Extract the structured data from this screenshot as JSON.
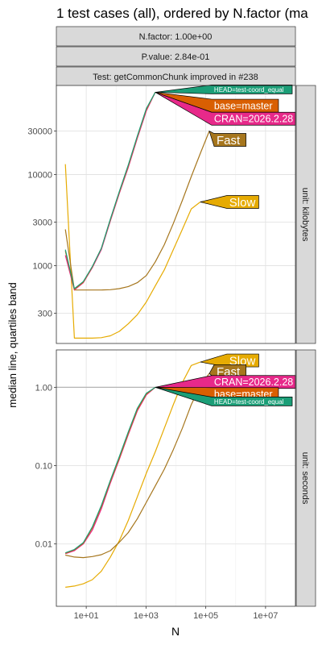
{
  "chart_data": {
    "type": "line",
    "title": "1 test cases (all), ordered by N.factor (ma",
    "xlabel": "N",
    "ylabel": "median line, quartiles band",
    "x_scale": "log10",
    "y_scale": "log10",
    "xlim": [
      1,
      100000000
    ],
    "x_ticks": [
      {
        "value": 10,
        "label": "1e+01"
      },
      {
        "value": 1000,
        "label": "1e+03"
      },
      {
        "value": 100000,
        "label": "1e+05"
      },
      {
        "value": 10000000,
        "label": "1e+07"
      }
    ],
    "strips": [
      {
        "key": "N.factor",
        "label": "N.factor: 1.00e+00"
      },
      {
        "key": "P.value",
        "label": "P.value: 2.84e-01"
      },
      {
        "key": "test",
        "label": "Test: getCommonChunk improved in #238"
      }
    ],
    "legend": "direct labels at line ends",
    "grid": true,
    "panels": [
      {
        "id": "kilobytes",
        "strip_label": "unit: kilobytes",
        "ylim": [
          140,
          95000
        ],
        "y_ticks": [
          {
            "value": 300,
            "label": "300"
          },
          {
            "value": 1000,
            "label": "1000"
          },
          {
            "value": 3000,
            "label": "3000"
          },
          {
            "value": 10000,
            "label": "10000"
          },
          {
            "value": 30000,
            "label": "30000"
          }
        ],
        "reference_line": null,
        "series": [
          {
            "name": "Slow",
            "color": "#E6AB02",
            "x": [
              2,
              4,
              8,
              16,
              32,
              64,
              128,
              256,
              512,
              1024,
              2048,
              4096,
              8192,
              16384,
              32768,
              65536
            ],
            "y": [
              13000,
              160,
              160,
              160,
              162,
              170,
              190,
              230,
              290,
              400,
              600,
              900,
              1500,
              2500,
              4200,
              5000
            ]
          },
          {
            "name": "Fast",
            "color": "#A6761D",
            "x": [
              2,
              4,
              8,
              16,
              32,
              64,
              128,
              256,
              512,
              1024,
              2048,
              4096,
              8192,
              16384,
              32768,
              65536,
              131072
            ],
            "y": [
              2500,
              540,
              540,
              540,
              540,
              545,
              560,
              590,
              650,
              780,
              1100,
              1700,
              2900,
              5200,
              9500,
              17000,
              30000
            ]
          },
          {
            "name": "CRAN=2026.2.28",
            "color": "#E7298A",
            "x": [
              2,
              4,
              8,
              16,
              32,
              64,
              128,
              256,
              512,
              1024,
              2048
            ],
            "y": [
              1300,
              540,
              650,
              950,
              1500,
              3100,
              6200,
              12000,
              25000,
              50000,
              80000
            ]
          },
          {
            "name": "base=master",
            "color": "#D95F02",
            "x": [
              2,
              4,
              8,
              16,
              32,
              64,
              128,
              256,
              512,
              1024,
              2048
            ],
            "y": [
              1450,
              550,
              660,
              970,
              1550,
              3200,
              6400,
              12500,
              26000,
              52000,
              80000
            ]
          },
          {
            "name": "HEAD=test-coord_equal",
            "color": "#1B9E77",
            "x": [
              2,
              4,
              8,
              16,
              32,
              64,
              128,
              256,
              512,
              1024,
              2048
            ],
            "y": [
              1500,
              560,
              670,
              980,
              1550,
              3250,
              6500,
              12800,
              26500,
              53000,
              80000
            ]
          }
        ],
        "labels": [
          {
            "series": "Slow",
            "text": "Slow",
            "at_x": 65536,
            "at_y": 5000,
            "label_y": 5000
          },
          {
            "series": "Fast",
            "text": "Fast",
            "at_x": 131072,
            "at_y": 30000,
            "label_y": 24000
          },
          {
            "series": "CRAN=2026.2.28",
            "text": "CRAN=2026.2.28",
            "at_x": 2048,
            "at_y": 80000,
            "label_y": 41000
          },
          {
            "series": "base=master",
            "text": "base=master",
            "at_x": 2048,
            "at_y": 80000,
            "label_y": 57000
          },
          {
            "series": "HEAD=test-coord_equal",
            "text": "HEAD=test-coord_equal",
            "at_x": 2048,
            "at_y": 80000,
            "label_y": 86000
          }
        ]
      },
      {
        "id": "seconds",
        "strip_label": "unit: seconds",
        "ylim": [
          0.0016,
          3.0
        ],
        "y_ticks": [
          {
            "value": 0.01,
            "label": "0.01"
          },
          {
            "value": 0.1,
            "label": "0.10"
          },
          {
            "value": 1,
            "label": "1.00"
          }
        ],
        "reference_line": 1,
        "series": [
          {
            "name": "Slow",
            "color": "#E6AB02",
            "x": [
              2,
              4,
              8,
              16,
              32,
              64,
              128,
              256,
              512,
              1024,
              2048,
              4096,
              8192,
              16384,
              32768,
              65536
            ],
            "y": [
              0.0028,
              0.0029,
              0.0031,
              0.0035,
              0.0045,
              0.0068,
              0.011,
              0.02,
              0.04,
              0.08,
              0.15,
              0.3,
              0.6,
              1.15,
              1.9,
              2.1
            ]
          },
          {
            "name": "Fast",
            "color": "#A6761D",
            "x": [
              2,
              4,
              8,
              16,
              32,
              64,
              128,
              256,
              512,
              1024,
              2048,
              4096,
              8192,
              16384,
              32768,
              65536,
              131072
            ],
            "y": [
              0.0072,
              0.0068,
              0.0067,
              0.0069,
              0.0073,
              0.0082,
              0.0105,
              0.014,
              0.021,
              0.034,
              0.055,
              0.09,
              0.16,
              0.3,
              0.6,
              1.05,
              1.5
            ]
          },
          {
            "name": "CRAN=2026.2.28",
            "color": "#E7298A",
            "x": [
              2,
              4,
              8,
              16,
              32,
              64,
              128,
              256,
              512,
              1024,
              2048
            ],
            "y": [
              0.0075,
              0.0082,
              0.01,
              0.015,
              0.028,
              0.06,
              0.12,
              0.25,
              0.5,
              0.8,
              1.0
            ]
          },
          {
            "name": "base=master",
            "color": "#D95F02",
            "x": [
              2,
              4,
              8,
              16,
              32,
              64,
              128,
              256,
              512,
              1024,
              2048
            ],
            "y": [
              0.0076,
              0.0084,
              0.0102,
              0.016,
              0.03,
              0.063,
              0.125,
              0.26,
              0.52,
              0.82,
              1.0
            ]
          },
          {
            "name": "HEAD=test-coord_equal",
            "color": "#1B9E77",
            "x": [
              2,
              4,
              8,
              16,
              32,
              64,
              128,
              256,
              512,
              1024,
              2048
            ],
            "y": [
              0.0077,
              0.0085,
              0.0104,
              0.0165,
              0.031,
              0.065,
              0.13,
              0.27,
              0.54,
              0.84,
              1.0
            ]
          }
        ],
        "labels": [
          {
            "series": "Slow",
            "text": "Slow",
            "at_x": 65536,
            "at_y": 2.1,
            "label_y": 2.2
          },
          {
            "series": "Fast",
            "text": "Fast",
            "at_x": 131072,
            "at_y": 1.5,
            "label_y": 1.6
          },
          {
            "series": "CRAN=2026.2.28",
            "text": "CRAN=2026.2.28",
            "at_x": 2048,
            "at_y": 1.0,
            "label_y": 1.17
          },
          {
            "series": "base=master",
            "text": "base=master",
            "at_x": 2048,
            "at_y": 1.0,
            "label_y": 0.82
          },
          {
            "series": "HEAD=test-coord_equal",
            "text": "HEAD=test-coord_equal",
            "at_x": 2048,
            "at_y": 1.0,
            "label_y": 0.66
          }
        ]
      }
    ]
  }
}
